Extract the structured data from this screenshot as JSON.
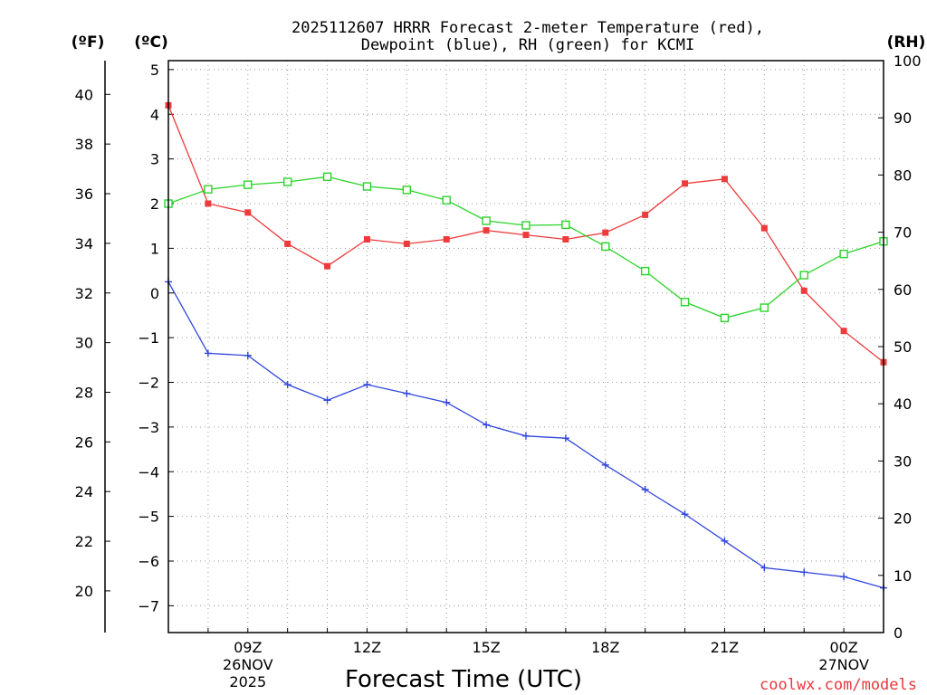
{
  "chart_data": {
    "type": "line",
    "title_lines": [
      "2025112607 HRRR Forecast 2-meter Temperature (red),",
      "Dewpoint (blue), RH (green) for KCMI"
    ],
    "xlabel": "Forecast Time (UTC)",
    "credit": "coolwx.com/models",
    "x_hours": [
      7,
      8,
      9,
      10,
      11,
      12,
      13,
      14,
      15,
      16,
      17,
      18,
      19,
      20,
      21,
      22,
      23,
      24,
      25
    ],
    "xlim": [
      7,
      25
    ],
    "x_ticks": [
      {
        "x": 9,
        "lines": [
          "09Z",
          "26NOV",
          "2025"
        ]
      },
      {
        "x": 12,
        "lines": [
          "12Z"
        ]
      },
      {
        "x": 15,
        "lines": [
          "15Z"
        ]
      },
      {
        "x": 18,
        "lines": [
          "18Z"
        ]
      },
      {
        "x": 21,
        "lines": [
          "21Z"
        ]
      },
      {
        "x": 24,
        "lines": [
          "00Z",
          "27NOV"
        ]
      }
    ],
    "celsius_axis": {
      "label": "(ºC)",
      "ylim": [
        -7.6,
        5.2
      ],
      "ticks": [
        5,
        4,
        3,
        2,
        1,
        0,
        -1,
        -2,
        -3,
        -4,
        -5,
        -6,
        -7
      ]
    },
    "fahrenheit_axis": {
      "label": "(ºF)",
      "ticks": [
        40,
        38,
        36,
        34,
        32,
        30,
        28,
        26,
        24,
        22,
        20
      ]
    },
    "rh_axis": {
      "label": "(RH)",
      "ylim": [
        0,
        100
      ],
      "ticks": [
        100,
        90,
        80,
        70,
        60,
        50,
        40,
        30,
        20,
        10,
        0
      ]
    },
    "series": [
      {
        "name": "Temperature",
        "axis": "celsius",
        "color": "#ee3a3a",
        "marker": "filled-square",
        "values": [
          4.2,
          2.0,
          1.8,
          1.1,
          0.6,
          1.2,
          1.1,
          1.2,
          1.4,
          1.3,
          1.2,
          1.35,
          1.75,
          2.45,
          2.55,
          1.45,
          0.05,
          -0.85,
          -1.55
        ]
      },
      {
        "name": "Dewpoint",
        "axis": "celsius",
        "color": "#3047dc",
        "marker": "plus",
        "values": [
          0.25,
          -1.35,
          -1.4,
          -2.05,
          -2.4,
          -2.05,
          -2.25,
          -2.45,
          -2.95,
          -3.2,
          -3.25,
          -3.85,
          -4.4,
          -4.95,
          -5.55,
          -6.15,
          -6.25,
          -6.35,
          -6.6
        ]
      },
      {
        "name": "RH",
        "axis": "rh",
        "color": "#2ad42a",
        "marker": "open-square",
        "values": [
          75,
          77.5,
          78.3,
          78.8,
          79.7,
          78,
          77.4,
          75.6,
          72,
          71.2,
          71.3,
          67.5,
          63.2,
          57.8,
          55,
          56.8,
          62.5,
          66.2,
          68.4
        ]
      }
    ]
  }
}
